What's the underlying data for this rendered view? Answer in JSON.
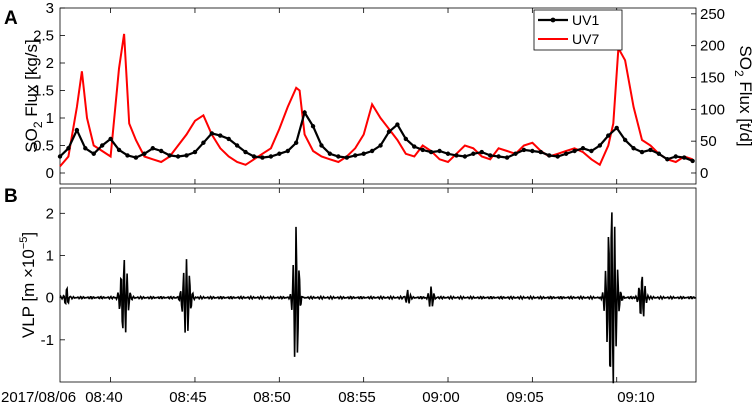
{
  "figure": {
    "panels": [
      "A",
      "B"
    ],
    "time_ticks": [
      "2017/08/06",
      "08:40",
      "08:45",
      "08:50",
      "08:55",
      "09:00",
      "09:05",
      "09:10"
    ]
  },
  "colors": {
    "uv1": "#000000",
    "uv7": "#ff0000"
  },
  "chart_data": [
    {
      "id": "A",
      "type": "line",
      "panel_label": "A",
      "xlabel": "",
      "ylabel": "SO₂ Flux [kg/s]",
      "ylabel_base": "SO",
      "ylabel_sub": "2",
      "ylabel_rest": " Flux [kg/s]",
      "y2label": "SO₂ Flux [t/d]",
      "y2label_base": "SO",
      "y2label_sub": "2",
      "y2label_rest": " Flux [t/d]",
      "ylim": [
        -0.2,
        3.0
      ],
      "yticks": [
        "0",
        "0.5",
        "1",
        "1.5",
        "2",
        "2.5",
        "3"
      ],
      "y2lim": [
        -17.3,
        259.2
      ],
      "y2ticks": [
        "0",
        "50",
        "100",
        "150",
        "200",
        "250"
      ],
      "x_unit": "minutes after 08:35 on 2017/08/06",
      "xlim": [
        0,
        37.7
      ],
      "legend": {
        "position": "top-right",
        "entries": [
          "UV1",
          "UV7"
        ]
      },
      "series": [
        {
          "name": "UV1",
          "color": "#000000",
          "marker": "dot",
          "x": [
            0,
            0.5,
            1,
            1.5,
            2,
            2.5,
            3,
            3.5,
            4,
            4.5,
            5,
            5.5,
            6,
            6.5,
            7,
            7.5,
            8,
            8.5,
            9,
            9.5,
            10,
            10.5,
            11,
            11.5,
            12,
            12.5,
            13,
            13.5,
            14,
            14.5,
            15,
            15.5,
            16,
            16.5,
            17,
            17.5,
            18,
            18.5,
            19,
            19.5,
            20,
            20.5,
            21,
            21.5,
            22,
            22.5,
            23,
            23.5,
            24,
            24.5,
            25,
            25.5,
            26,
            26.5,
            27,
            27.5,
            28,
            28.5,
            29,
            29.5,
            30,
            30.5,
            31,
            31.5,
            32,
            32.5,
            33,
            33.5,
            34,
            34.5,
            35,
            35.5,
            36,
            36.5,
            37,
            37.5
          ],
          "values": [
            0.3,
            0.45,
            0.78,
            0.45,
            0.35,
            0.5,
            0.62,
            0.42,
            0.32,
            0.28,
            0.35,
            0.45,
            0.4,
            0.32,
            0.3,
            0.32,
            0.38,
            0.55,
            0.72,
            0.68,
            0.62,
            0.5,
            0.38,
            0.3,
            0.28,
            0.3,
            0.35,
            0.4,
            0.55,
            1.1,
            0.85,
            0.5,
            0.35,
            0.3,
            0.28,
            0.32,
            0.35,
            0.4,
            0.5,
            0.75,
            0.88,
            0.62,
            0.48,
            0.42,
            0.38,
            0.4,
            0.35,
            0.32,
            0.3,
            0.35,
            0.38,
            0.32,
            0.3,
            0.28,
            0.35,
            0.42,
            0.4,
            0.38,
            0.32,
            0.3,
            0.35,
            0.4,
            0.45,
            0.4,
            0.5,
            0.68,
            0.82,
            0.6,
            0.45,
            0.38,
            0.42,
            0.35,
            0.25,
            0.3,
            0.28,
            0.22
          ]
        },
        {
          "name": "UV7",
          "color": "#ff0000",
          "x": [
            0,
            0.5,
            1,
            1.3,
            1.6,
            2,
            2.5,
            3,
            3.5,
            3.8,
            4.1,
            4.5,
            5,
            5.5,
            6,
            6.5,
            7,
            7.5,
            8,
            8.5,
            9,
            9.5,
            10,
            10.5,
            11,
            11.5,
            12,
            12.5,
            13,
            13.5,
            14,
            14.2,
            14.5,
            15,
            15.5,
            16,
            16.5,
            17,
            17.5,
            18,
            18.5,
            19,
            19.5,
            20,
            20.5,
            21,
            21.5,
            22,
            22.5,
            23,
            23.5,
            24,
            24.5,
            25,
            25.5,
            26,
            26.5,
            27,
            27.5,
            28,
            28.5,
            29,
            29.5,
            30,
            30.5,
            31,
            31.5,
            32,
            32.5,
            32.8,
            33.1,
            33.5,
            34,
            34.5,
            35,
            35.5,
            36,
            36.5,
            37,
            37.5
          ],
          "values": [
            0.12,
            0.3,
            1.2,
            1.85,
            1.0,
            0.5,
            0.4,
            0.3,
            1.9,
            2.53,
            0.9,
            0.6,
            0.3,
            0.25,
            0.2,
            0.3,
            0.5,
            0.7,
            0.95,
            1.05,
            0.7,
            0.45,
            0.3,
            0.2,
            0.15,
            0.25,
            0.35,
            0.45,
            0.8,
            1.2,
            1.55,
            1.5,
            0.7,
            0.4,
            0.3,
            0.25,
            0.2,
            0.3,
            0.45,
            0.7,
            1.25,
            1.0,
            0.8,
            0.6,
            0.35,
            0.3,
            0.5,
            0.4,
            0.25,
            0.2,
            0.35,
            0.5,
            0.45,
            0.3,
            0.25,
            0.45,
            0.4,
            0.35,
            0.5,
            0.55,
            0.4,
            0.3,
            0.35,
            0.4,
            0.45,
            0.38,
            0.25,
            0.15,
            0.5,
            0.9,
            2.27,
            2.05,
            1.2,
            0.6,
            0.5,
            0.35,
            0.25,
            0.2,
            0.3,
            0.25
          ]
        }
      ]
    },
    {
      "id": "B",
      "type": "line",
      "panel_label": "B",
      "xlabel": "",
      "ylabel": "VLP [m ×10⁻⁵]",
      "ylabel_main": "VLP [m ×10",
      "ylabel_sup": "−5",
      "ylabel_end": "]",
      "ylim": [
        -2.0,
        2.6
      ],
      "yticks": [
        "-1",
        "0",
        "1",
        "2"
      ],
      "x_unit": "minutes after 08:35 on 2017/08/06",
      "xlim": [
        0,
        37.7
      ],
      "baseline": 0,
      "noise_amplitude": 0.03,
      "series": [
        {
          "name": "",
          "color": "#000000",
          "bursts": [
            {
              "t": 0.4,
              "amp": 0.28,
              "dur": 0.35
            },
            {
              "t": 3.8,
              "amp": 0.98,
              "dur": 0.7
            },
            {
              "t": 7.5,
              "amp": 0.92,
              "dur": 0.75
            },
            {
              "t": 14.0,
              "amp": 1.77,
              "dur": 0.55
            },
            {
              "t": 20.6,
              "amp": 0.18,
              "dur": 0.4
            },
            {
              "t": 22.0,
              "amp": 0.25,
              "dur": 0.5
            },
            {
              "t": 32.7,
              "amp": 2.38,
              "dur": 0.9
            },
            {
              "t": 34.5,
              "amp": 0.62,
              "dur": 0.6
            }
          ]
        }
      ]
    }
  ]
}
